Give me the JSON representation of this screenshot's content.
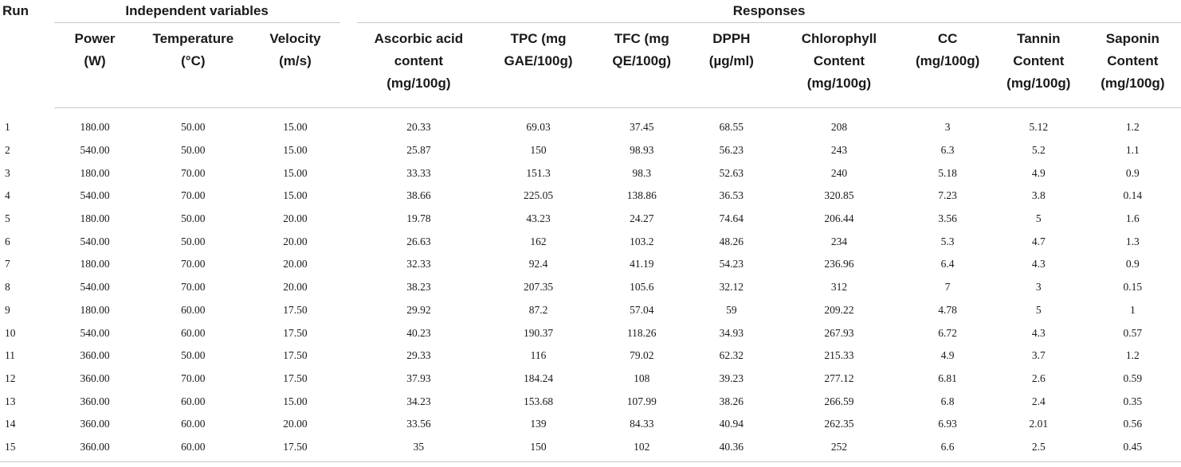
{
  "headers": {
    "run": "Run",
    "independent_group": "Independent variables",
    "responses_group": "Responses",
    "columns": [
      [
        "Power",
        "(W)"
      ],
      [
        "Temperature",
        "(°C)"
      ],
      [
        "Velocity",
        "(m/s)"
      ],
      [
        "Ascorbic acid",
        "content",
        "(mg/100g)"
      ],
      [
        "TPC (mg",
        "GAE/100g)"
      ],
      [
        "TFC (mg",
        "QE/100g)"
      ],
      [
        "DPPH",
        "(µg/ml)"
      ],
      [
        "Chlorophyll",
        "Content",
        "(mg/100g)"
      ],
      [
        "CC",
        "(mg/100g)"
      ],
      [
        "Tannin",
        "Content",
        "(mg/100g)"
      ],
      [
        "Saponin",
        "Content",
        "(mg/100g)"
      ]
    ]
  },
  "rows": [
    [
      "1",
      "180.00",
      "50.00",
      "15.00",
      "20.33",
      "69.03",
      "37.45",
      "68.55",
      "208",
      "3",
      "5.12",
      "1.2"
    ],
    [
      "2",
      "540.00",
      "50.00",
      "15.00",
      "25.87",
      "150",
      "98.93",
      "56.23",
      "243",
      "6.3",
      "5.2",
      "1.1"
    ],
    [
      "3",
      "180.00",
      "70.00",
      "15.00",
      "33.33",
      "151.3",
      "98.3",
      "52.63",
      "240",
      "5.18",
      "4.9",
      "0.9"
    ],
    [
      "4",
      "540.00",
      "70.00",
      "15.00",
      "38.66",
      "225.05",
      "138.86",
      "36.53",
      "320.85",
      "7.23",
      "3.8",
      "0.14"
    ],
    [
      "5",
      "180.00",
      "50.00",
      "20.00",
      "19.78",
      "43.23",
      "24.27",
      "74.64",
      "206.44",
      "3.56",
      "5",
      "1.6"
    ],
    [
      "6",
      "540.00",
      "50.00",
      "20.00",
      "26.63",
      "162",
      "103.2",
      "48.26",
      "234",
      "5.3",
      "4.7",
      "1.3"
    ],
    [
      "7",
      "180.00",
      "70.00",
      "20.00",
      "32.33",
      "92.4",
      "41.19",
      "54.23",
      "236.96",
      "6.4",
      "4.3",
      "0.9"
    ],
    [
      "8",
      "540.00",
      "70.00",
      "20.00",
      "38.23",
      "207.35",
      "105.6",
      "32.12",
      "312",
      "7",
      "3",
      "0.15"
    ],
    [
      "9",
      "180.00",
      "60.00",
      "17.50",
      "29.92",
      "87.2",
      "57.04",
      "59",
      "209.22",
      "4.78",
      "5",
      "1"
    ],
    [
      "10",
      "540.00",
      "60.00",
      "17.50",
      "40.23",
      "190.37",
      "118.26",
      "34.93",
      "267.93",
      "6.72",
      "4.3",
      "0.57"
    ],
    [
      "11",
      "360.00",
      "50.00",
      "17.50",
      "29.33",
      "116",
      "79.02",
      "62.32",
      "215.33",
      "4.9",
      "3.7",
      "1.2"
    ],
    [
      "12",
      "360.00",
      "70.00",
      "17.50",
      "37.93",
      "184.24",
      "108",
      "39.23",
      "277.12",
      "6.81",
      "2.6",
      "0.59"
    ],
    [
      "13",
      "360.00",
      "60.00",
      "15.00",
      "34.23",
      "153.68",
      "107.99",
      "38.26",
      "266.59",
      "6.8",
      "2.4",
      "0.35"
    ],
    [
      "14",
      "360.00",
      "60.00",
      "20.00",
      "33.56",
      "139",
      "84.33",
      "40.94",
      "262.35",
      "6.93",
      "2.01",
      "0.56"
    ],
    [
      "15",
      "360.00",
      "60.00",
      "17.50",
      "35",
      "150",
      "102",
      "40.36",
      "252",
      "6.6",
      "2.5",
      "0.45"
    ]
  ]
}
